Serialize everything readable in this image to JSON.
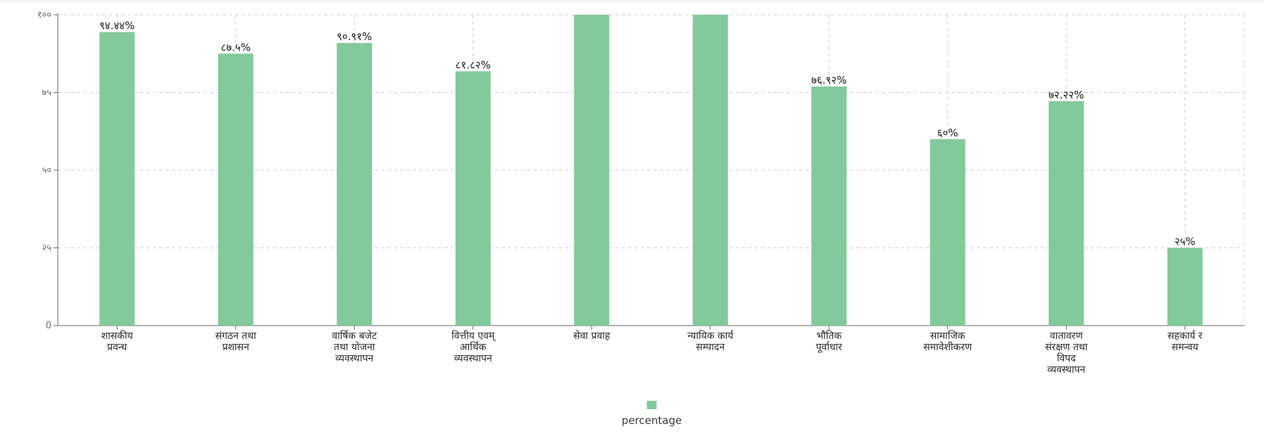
{
  "chart_data": {
    "type": "bar",
    "categories": [
      [
        "शासकीय",
        "प्रवन्ध"
      ],
      [
        "संगठन तथा",
        "प्रशासन"
      ],
      [
        "वार्षिक बजेट",
        "तथा योजना",
        "व्यवस्थापन"
      ],
      [
        "वित्तीय एवम्",
        "आर्थिक",
        "व्यवस्थापन"
      ],
      [
        "सेवा प्रवाह"
      ],
      [
        "न्यायिक कार्य",
        "सम्पादन"
      ],
      [
        "भौतिक",
        "पूर्वाधार"
      ],
      [
        "सामाजिक",
        "समावेशीकरण"
      ],
      [
        "वातावरण",
        "संरक्षण तथा",
        "विपद",
        "व्यवस्थापन"
      ],
      [
        "सहकार्य र",
        "समन्वय"
      ]
    ],
    "series": [
      {
        "name": "percentage",
        "values": [
          94.44,
          87.5,
          90.91,
          81.82,
          100,
          100,
          76.92,
          60,
          72.22,
          25
        ],
        "labels": [
          "९४.४४%",
          "८७.५%",
          "९०.९१%",
          "८१.८२%",
          "",
          "",
          "७६.९२%",
          "६०%",
          "७२.२२%",
          "२५%"
        ]
      }
    ],
    "yticks": [
      {
        "value": 0,
        "label": "0"
      },
      {
        "value": 25,
        "label": "२५"
      },
      {
        "value": 50,
        "label": "५०"
      },
      {
        "value": 75,
        "label": "७५"
      },
      {
        "value": 100,
        "label": "१००"
      }
    ],
    "ylim": [
      0,
      100
    ],
    "grid": true,
    "legend_position": "bottom-center",
    "colors": {
      "bar": "#82c99b",
      "grid": "#cccccc",
      "axis": "#666666"
    }
  }
}
